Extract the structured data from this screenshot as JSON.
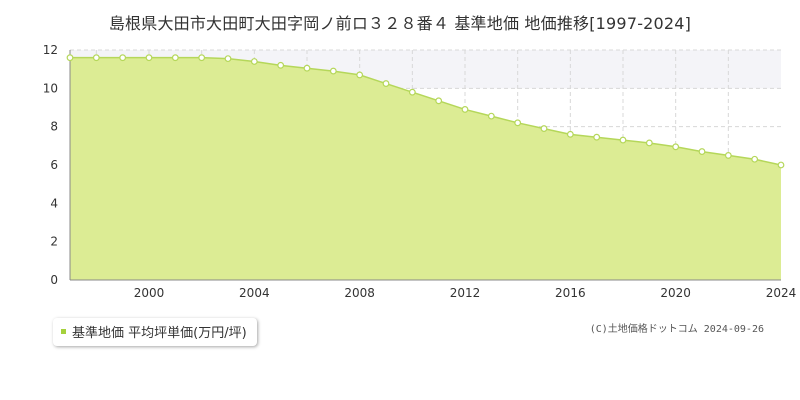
{
  "title": "島根県大田市大田町大田字岡ノ前ロ３２８番４ 基準地価 地価推移[1997-2024]",
  "legend_label": "基準地価 平均坪単価(万円/坪)",
  "copyright": "(C)土地価格ドットコム 2024-09-26",
  "colors": {
    "area_fill": "#dcec94",
    "line": "#b5d75a",
    "marker": "#ffffff",
    "legend_swatch": "#a5d13c",
    "grid": "#d8d8d8",
    "upper_band": "#f4f4f8"
  },
  "chart_data": {
    "type": "area",
    "x": [
      1997,
      1998,
      1999,
      2000,
      2001,
      2002,
      2003,
      2004,
      2005,
      2006,
      2007,
      2008,
      2009,
      2010,
      2011,
      2012,
      2013,
      2014,
      2015,
      2016,
      2017,
      2018,
      2019,
      2020,
      2021,
      2022,
      2023,
      2024
    ],
    "series": [
      {
        "name": "基準地価 平均坪単価(万円/坪)",
        "values": [
          11.6,
          11.6,
          11.6,
          11.6,
          11.6,
          11.6,
          11.55,
          11.4,
          11.2,
          11.05,
          10.9,
          10.7,
          10.25,
          9.8,
          9.35,
          8.9,
          8.55,
          8.2,
          7.9,
          7.6,
          7.45,
          7.3,
          7.15,
          6.95,
          6.7,
          6.5,
          6.3,
          6.0
        ]
      }
    ],
    "xlim": [
      1997,
      2024
    ],
    "ylim": [
      0,
      12
    ],
    "xticks": [
      2000,
      2004,
      2008,
      2012,
      2016,
      2020,
      2024
    ],
    "yticks": [
      0,
      2,
      4,
      6,
      8,
      10,
      12
    ],
    "grid": true,
    "legend": "bottom-left"
  }
}
